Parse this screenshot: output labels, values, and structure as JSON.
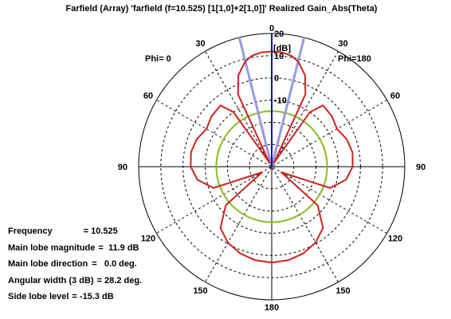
{
  "title": "Farfield (Array) 'farfield (f=10.525) [1[1,0]+2[1,0]]' Realized Gain_Abs(Theta)",
  "phi_left": "Phi=  0",
  "phi_right": "Phi=180",
  "unit_label": "[dB]",
  "info": [
    {
      "label": "Frequency",
      "value": "= 10.525"
    },
    {
      "label": "Main lobe magnitude",
      "value": "=  11.9 dB"
    },
    {
      "label": "Main lobe direction",
      "value": "=   0.0 deg."
    },
    {
      "label": "Angular width (3 dB)",
      "value": "= 28.2 deg."
    },
    {
      "label": "Side lobe level",
      "value": "= -15.3 dB"
    }
  ],
  "chart_data": {
    "type": "polar",
    "title": "Farfield (Array) 'farfield (f=10.525) [1[1,0]+2[1,0]]' Realized Gain_Abs(Theta)",
    "r_unit": "dB",
    "r_range": [
      -40,
      20
    ],
    "r_ticks": [
      "20",
      "10",
      "0",
      "-10"
    ],
    "angle_ticks": [
      {
        "angle": 0,
        "label": "0"
      },
      {
        "angle": 30,
        "label": "30"
      },
      {
        "angle": -30,
        "label": "30"
      },
      {
        "angle": 60,
        "label": "60"
      },
      {
        "angle": -60,
        "label": "60"
      },
      {
        "angle": 90,
        "label": "90"
      },
      {
        "angle": -90,
        "label": "90"
      },
      {
        "angle": 120,
        "label": "120"
      },
      {
        "angle": -120,
        "label": "120"
      },
      {
        "angle": 150,
        "label": "150"
      },
      {
        "angle": -150,
        "label": "150"
      },
      {
        "angle": 180,
        "label": "180"
      }
    ],
    "reference_level_db": -15,
    "main_lobe_direction_deg": 0,
    "beamwidth_deg": 28.2,
    "series": [
      {
        "color": "#cc2222",
        "theta_deg": [
          0,
          5,
          10,
          14.1,
          20,
          25,
          30,
          35,
          40,
          50,
          60,
          70,
          80,
          90,
          100,
          110,
          120,
          130,
          140,
          150,
          160,
          170,
          180
        ],
        "gain_db": [
          11.9,
          11.7,
          10.8,
          8.9,
          3.9,
          -4.0,
          -38.0,
          -10.0,
          -4.0,
          -4.6,
          -6.0,
          -4.0,
          -3.0,
          -3.5,
          -6.0,
          -12.0,
          -35.0,
          -13.0,
          -4.0,
          -0.5,
          1.6,
          2.8,
          3.2
        ]
      }
    ],
    "reference_circle": {
      "color": "#88bb22",
      "gain_db": -15
    },
    "marker_color": "#0000cc",
    "beamwidth_line_color": "#9999dd"
  }
}
